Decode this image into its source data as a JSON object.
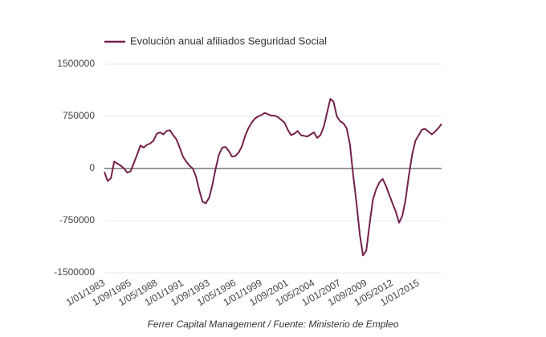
{
  "chart_data": {
    "type": "line",
    "source": "Ferrer Capital Management / Fuente: Ministerio de Empleo",
    "x": [
      "1/01/1983",
      "1/05/1983",
      "1/09/1983",
      "1/01/1984",
      "1/05/1984",
      "1/09/1984",
      "1/01/1985",
      "1/05/1985",
      "1/09/1985",
      "1/01/1986",
      "1/05/1986",
      "1/09/1986",
      "1/01/1987",
      "1/05/1987",
      "1/09/1987",
      "1/01/1988",
      "1/05/1988",
      "1/09/1988",
      "1/01/1989",
      "1/05/1989",
      "1/09/1989",
      "1/01/1990",
      "1/05/1990",
      "1/09/1990",
      "1/01/1991",
      "1/05/1991",
      "1/09/1991",
      "1/01/1992",
      "1/05/1992",
      "1/09/1992",
      "1/01/1993",
      "1/05/1993",
      "1/09/1993",
      "1/01/1994",
      "1/05/1994",
      "1/09/1994",
      "1/01/1995",
      "1/05/1995",
      "1/09/1995",
      "1/01/1996",
      "1/05/1996",
      "1/09/1996",
      "1/01/1997",
      "1/05/1997",
      "1/09/1997",
      "1/01/1998",
      "1/05/1998",
      "1/09/1998",
      "1/01/1999",
      "1/05/1999",
      "1/09/1999",
      "1/01/2000",
      "1/05/2000",
      "1/09/2000",
      "1/01/2001",
      "1/05/2001",
      "1/09/2001",
      "1/01/2002",
      "1/05/2002",
      "1/09/2002",
      "1/01/2003",
      "1/05/2003",
      "1/09/2003",
      "1/01/2004",
      "1/05/2004",
      "1/09/2004",
      "1/01/2005",
      "1/05/2005",
      "1/09/2005",
      "1/01/2006",
      "1/05/2006",
      "1/09/2006",
      "1/01/2007",
      "1/05/2007",
      "1/09/2007",
      "1/01/2008",
      "1/05/2008",
      "1/09/2008",
      "1/01/2009",
      "1/05/2009",
      "1/09/2009",
      "1/01/2010",
      "1/05/2010",
      "1/09/2010",
      "1/01/2011",
      "1/05/2011",
      "1/09/2011",
      "1/01/2012",
      "1/05/2012",
      "1/09/2012",
      "1/01/2013",
      "1/05/2013",
      "1/09/2013",
      "1/01/2014",
      "1/05/2014",
      "1/09/2014",
      "1/01/2015",
      "1/05/2015",
      "1/09/2015",
      "1/01/2016",
      "1/05/2016",
      "1/09/2016",
      "1/01/2017",
      "1/05/2017"
    ],
    "series": [
      {
        "name": "Evolución anual afiliados Seguridad Social",
        "color": "#74214b",
        "values": [
          -50000,
          -180000,
          -140000,
          100000,
          70000,
          40000,
          0,
          -60000,
          -40000,
          80000,
          200000,
          330000,
          300000,
          340000,
          360000,
          400000,
          500000,
          520000,
          490000,
          540000,
          550000,
          480000,
          420000,
          300000,
          170000,
          100000,
          40000,
          0,
          -120000,
          -320000,
          -480000,
          -500000,
          -420000,
          -230000,
          0,
          200000,
          300000,
          310000,
          250000,
          170000,
          180000,
          230000,
          320000,
          470000,
          580000,
          660000,
          720000,
          750000,
          770000,
          800000,
          780000,
          760000,
          760000,
          740000,
          700000,
          660000,
          560000,
          480000,
          500000,
          540000,
          480000,
          470000,
          460000,
          490000,
          520000,
          440000,
          480000,
          600000,
          800000,
          1000000,
          960000,
          750000,
          680000,
          650000,
          580000,
          350000,
          -100000,
          -500000,
          -950000,
          -1250000,
          -1180000,
          -800000,
          -450000,
          -300000,
          -200000,
          -150000,
          -250000,
          -380000,
          -500000,
          -620000,
          -780000,
          -680000,
          -450000,
          -100000,
          200000,
          400000,
          480000,
          560000,
          570000,
          530000,
          490000,
          530000,
          580000,
          640000
        ]
      }
    ],
    "xticks": [
      "1/01/1983",
      "1/09/1985",
      "1/05/1988",
      "1/01/1991",
      "1/09/1993",
      "1/05/1996",
      "1/01/1999",
      "1/09/2001",
      "1/05/2004",
      "1/01/2007",
      "1/09/2009",
      "1/05/2012",
      "1/01/2015"
    ],
    "ylim": [
      -1500000,
      1500000
    ],
    "yticks": [
      1500000,
      750000,
      0,
      -750000,
      -1500000
    ],
    "grid": true,
    "legend": "top-left"
  }
}
